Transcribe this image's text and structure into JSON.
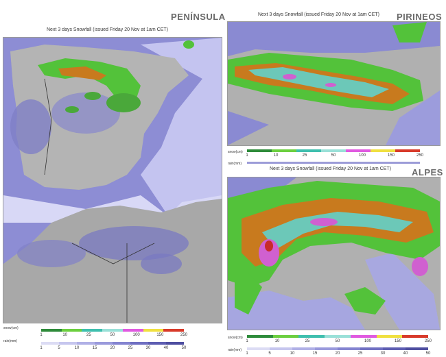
{
  "regions": {
    "peninsula": "PENÍNSULA",
    "pirineos": "PIRINEOS",
    "alpes": "ALPES"
  },
  "map_title": "Next 3 days Snowfall (issued Friday 20 Nov at 1am CET)",
  "legend": {
    "snow_key": "snow(cm)",
    "rain_key": "rain(mm)",
    "snow_ticks": [
      "1",
      "10",
      "25",
      "50",
      "100",
      "150",
      "250"
    ],
    "rain_ticks": [
      "1",
      "5",
      "10",
      "15",
      "20",
      "25",
      "30",
      "40",
      "50"
    ],
    "snow_colors": [
      "#2e8b3a",
      "#6ccf3f",
      "#3fbfae",
      "#9ae0d8",
      "#e05ae0",
      "#f0e040",
      "#d83a2a"
    ],
    "rain_colors": [
      "#dcdcf4",
      "#c6c6ee",
      "#b0b0e6",
      "#9a9adc",
      "#8484d0",
      "#7070c2",
      "#5e5eb2",
      "#4e4ea0"
    ]
  },
  "colors": {
    "land": "#b4b4b4",
    "sea_light": "#c8c8f0",
    "sea_dark": "#8a8ad2",
    "snow_light": "#53c23a",
    "snow_mid": "#c87a1e",
    "snow_high": "#d060d0"
  }
}
